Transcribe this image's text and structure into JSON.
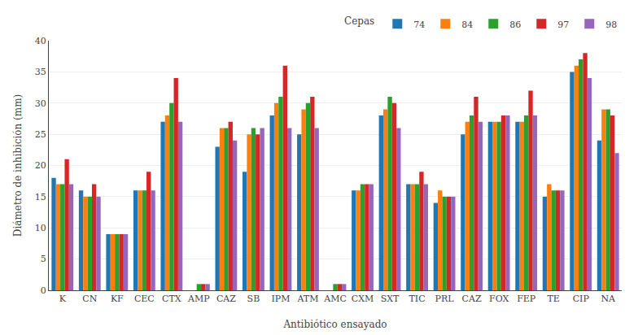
{
  "chart_data": {
    "type": "bar",
    "categories": [
      "K",
      "CN",
      "KF",
      "CEC",
      "CTX",
      "AMP",
      "CAZ",
      "SB",
      "IPM",
      "ATM",
      "AMC",
      "CXM",
      "SXT",
      "TIC",
      "PRL",
      "CAZ",
      "FOX",
      "FEP",
      "TE",
      "CIP",
      "NA"
    ],
    "series": [
      {
        "name": "74",
        "values": [
          18,
          16,
          9,
          16,
          27,
          0,
          23,
          19,
          28,
          25,
          0,
          16,
          28,
          17,
          14,
          25,
          27,
          27,
          15,
          35,
          24
        ]
      },
      {
        "name": "84",
        "values": [
          17,
          15,
          9,
          16,
          28,
          0,
          26,
          25,
          30,
          29,
          0,
          16,
          29,
          17,
          16,
          27,
          27,
          27,
          17,
          36,
          29
        ]
      },
      {
        "name": "86",
        "values": [
          17,
          15,
          9,
          16,
          30,
          1,
          26,
          26,
          31,
          30,
          1,
          17,
          31,
          17,
          15,
          28,
          27,
          28,
          16,
          37,
          29
        ]
      },
      {
        "name": "97",
        "values": [
          21,
          17,
          9,
          19,
          34,
          1,
          27,
          25,
          36,
          31,
          1,
          17,
          30,
          19,
          15,
          31,
          28,
          32,
          16,
          38,
          28
        ]
      },
      {
        "name": "98",
        "values": [
          17,
          15,
          9,
          16,
          27,
          1,
          24,
          26,
          26,
          26,
          1,
          17,
          26,
          17,
          15,
          27,
          28,
          28,
          16,
          34,
          22
        ]
      }
    ],
    "xlabel": "Antibiótico ensayado",
    "ylabel": "Diámetro de inhibición (mm)",
    "legend_title": "Cepas",
    "ylim": [
      0,
      40
    ],
    "yticks": [
      0,
      5,
      10,
      15,
      20,
      25,
      30,
      35,
      40
    ],
    "grid": true,
    "legend": "upper right"
  }
}
